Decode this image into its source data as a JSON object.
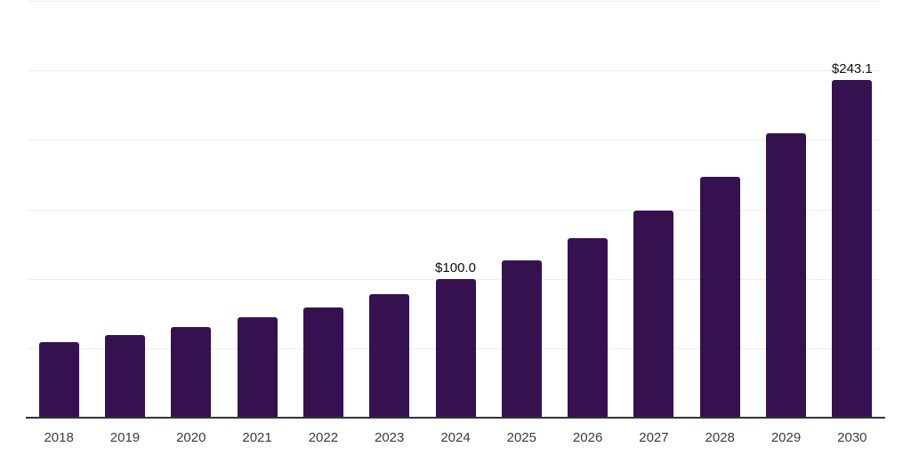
{
  "chart_data": {
    "type": "bar",
    "title": "",
    "xlabel": "",
    "ylabel": "",
    "categories": [
      "2018",
      "2019",
      "2020",
      "2021",
      "2022",
      "2023",
      "2024",
      "2025",
      "2026",
      "2027",
      "2028",
      "2029",
      "2030"
    ],
    "values": [
      54.6,
      59.7,
      65.5,
      72.0,
      79.5,
      89.0,
      100.0,
      113.4,
      129.4,
      149.2,
      173.4,
      204.8,
      243.1
    ],
    "data_labels": [
      {
        "category": "2024",
        "text": "$100.0"
      },
      {
        "category": "2030",
        "text": "$243.1"
      }
    ],
    "ylim": [
      0,
      300
    ],
    "gridline_step": 50,
    "grid": true,
    "legend": false,
    "y_tick_labels_shown": false,
    "colors": {
      "bar": "#361150",
      "axis_line": "#333333",
      "gridline": "#ededed",
      "data_label": "#0d0d0d",
      "tick_label": "#3c3c3c",
      "background": "#ffffff"
    }
  }
}
